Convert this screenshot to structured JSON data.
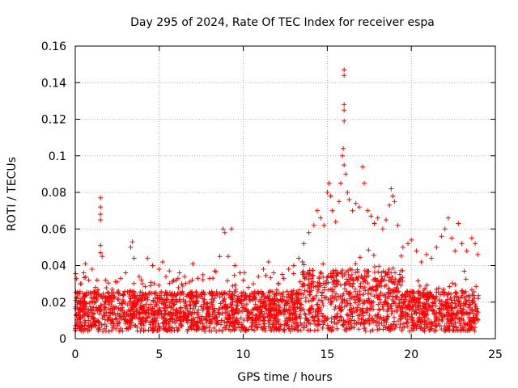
{
  "chart_data": {
    "type": "scatter",
    "title": "Day 295 of 2024, Rate Of TEC Index for receiver espa",
    "xlabel": "GPS time / hours",
    "ylabel": "ROTI / TECUs",
    "xlim": [
      0,
      25
    ],
    "ylim": [
      0,
      0.16
    ],
    "x_ticks": [
      0,
      5,
      10,
      15,
      20,
      25
    ],
    "y_ticks": [
      0,
      0.02,
      0.04,
      0.06,
      0.08,
      0.1,
      0.12,
      0.14,
      0.16
    ],
    "x_tick_labels": [
      "0",
      "5",
      "10",
      "15",
      "20",
      "25"
    ],
    "y_tick_labels": [
      "0",
      "0.02",
      "0.04",
      "0.06",
      "0.08",
      "0.1",
      "0.12",
      "0.14",
      "0.16"
    ],
    "grid": true,
    "marker": "+",
    "color": "#ff0000",
    "series": [
      {
        "name": "ROTI",
        "points": [
          [
            0.1,
            0.025
          ],
          [
            0.3,
            0.03
          ],
          [
            0.5,
            0.036
          ],
          [
            0.6,
            0.041
          ],
          [
            0.8,
            0.032
          ],
          [
            1.0,
            0.038
          ],
          [
            1.2,
            0.028
          ],
          [
            1.5,
            0.077
          ],
          [
            1.5,
            0.072
          ],
          [
            1.5,
            0.068
          ],
          [
            1.5,
            0.065
          ],
          [
            1.5,
            0.051
          ],
          [
            1.5,
            0.047
          ],
          [
            1.6,
            0.045
          ],
          [
            1.8,
            0.032
          ],
          [
            2.2,
            0.027
          ],
          [
            2.5,
            0.031
          ],
          [
            2.7,
            0.033
          ],
          [
            3.0,
            0.036
          ],
          [
            3.3,
            0.05
          ],
          [
            3.4,
            0.053
          ],
          [
            3.5,
            0.044
          ],
          [
            3.8,
            0.034
          ],
          [
            4.0,
            0.03
          ],
          [
            4.3,
            0.044
          ],
          [
            4.6,
            0.04
          ],
          [
            5.0,
            0.038
          ],
          [
            5.2,
            0.042
          ],
          [
            5.4,
            0.034
          ],
          [
            5.6,
            0.037
          ],
          [
            6.0,
            0.032
          ],
          [
            6.2,
            0.036
          ],
          [
            6.5,
            0.034
          ],
          [
            6.8,
            0.031
          ],
          [
            7.0,
            0.041
          ],
          [
            7.3,
            0.033
          ],
          [
            7.6,
            0.035
          ],
          [
            8.0,
            0.033
          ],
          [
            8.3,
            0.037
          ],
          [
            8.6,
            0.045
          ],
          [
            8.8,
            0.06
          ],
          [
            8.9,
            0.058
          ],
          [
            9.1,
            0.045
          ],
          [
            9.3,
            0.06
          ],
          [
            9.5,
            0.04
          ],
          [
            9.8,
            0.036
          ],
          [
            10.0,
            0.032
          ],
          [
            10.3,
            0.028
          ],
          [
            10.6,
            0.03
          ],
          [
            10.9,
            0.034
          ],
          [
            11.2,
            0.038
          ],
          [
            11.5,
            0.042
          ],
          [
            11.8,
            0.036
          ],
          [
            12.1,
            0.03
          ],
          [
            12.4,
            0.033
          ],
          [
            12.7,
            0.038
          ],
          [
            13.0,
            0.04
          ],
          [
            13.3,
            0.044
          ],
          [
            13.6,
            0.052
          ],
          [
            13.9,
            0.058
          ],
          [
            14.2,
            0.062
          ],
          [
            14.4,
            0.07
          ],
          [
            14.6,
            0.066
          ],
          [
            14.8,
            0.062
          ],
          [
            15.0,
            0.08
          ],
          [
            15.1,
            0.085
          ],
          [
            15.2,
            0.078
          ],
          [
            15.3,
            0.07
          ],
          [
            15.5,
            0.064
          ],
          [
            15.7,
            0.075
          ],
          [
            15.8,
            0.085
          ],
          [
            15.9,
            0.1
          ],
          [
            15.95,
            0.104
          ],
          [
            16.0,
            0.147
          ],
          [
            16.0,
            0.144
          ],
          [
            16.0,
            0.128
          ],
          [
            16.0,
            0.125
          ],
          [
            16.0,
            0.119
          ],
          [
            16.0,
            0.095
          ],
          [
            16.1,
            0.09
          ],
          [
            16.2,
            0.08
          ],
          [
            16.3,
            0.076
          ],
          [
            16.5,
            0.07
          ],
          [
            16.7,
            0.074
          ],
          [
            16.9,
            0.072
          ],
          [
            17.1,
            0.094
          ],
          [
            17.2,
            0.085
          ],
          [
            17.4,
            0.07
          ],
          [
            17.6,
            0.067
          ],
          [
            17.8,
            0.063
          ],
          [
            18.0,
            0.066
          ],
          [
            18.3,
            0.06
          ],
          [
            18.5,
            0.065
          ],
          [
            18.7,
            0.073
          ],
          [
            18.8,
            0.082
          ],
          [
            18.9,
            0.078
          ],
          [
            19.0,
            0.075
          ],
          [
            19.2,
            0.062
          ],
          [
            19.5,
            0.05
          ],
          [
            19.8,
            0.052
          ],
          [
            20.0,
            0.054
          ],
          [
            20.3,
            0.048
          ],
          [
            20.6,
            0.042
          ],
          [
            20.9,
            0.046
          ],
          [
            21.2,
            0.044
          ],
          [
            21.5,
            0.05
          ],
          [
            21.8,
            0.056
          ],
          [
            22.0,
            0.06
          ],
          [
            22.2,
            0.066
          ],
          [
            22.4,
            0.055
          ],
          [
            22.6,
            0.048
          ],
          [
            22.8,
            0.063
          ],
          [
            23.0,
            0.052
          ],
          [
            23.3,
            0.048
          ],
          [
            23.6,
            0.055
          ],
          [
            23.8,
            0.052
          ],
          [
            23.95,
            0.046
          ]
        ]
      }
    ]
  }
}
